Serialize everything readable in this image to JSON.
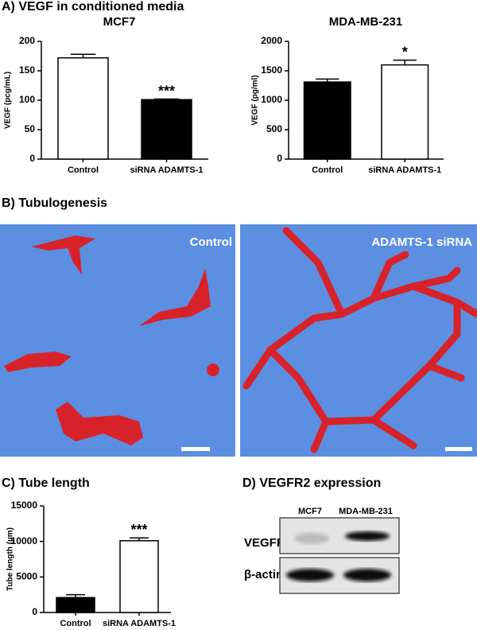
{
  "figure": {
    "panel_a_title": "A) VEGF in conditioned media",
    "panel_b_title": "B) Tubulogenesis",
    "image_labels": [
      "Control",
      "ADAMTS-1 siRNA"
    ],
    "panel_d_title": "D) VEGFR2 expression",
    "blot_lanes": [
      "MCF7",
      "MDA-MB-231"
    ],
    "blot_rows": [
      "VEGFR",
      "β-actin"
    ]
  },
  "chart_data": [
    {
      "type": "bar",
      "title": "MCF7",
      "ylabel": "VEGF (pcg/mL)",
      "categories": [
        "Control",
        "siRNA ADAMTS-1"
      ],
      "values": [
        172,
        101
      ],
      "errors": [
        6,
        1
      ],
      "colors": [
        "#ffffff",
        "#000000"
      ],
      "annotations": [
        null,
        "***"
      ],
      "ylim": [
        0,
        200
      ],
      "yticks": [
        0,
        50,
        100,
        150,
        200
      ]
    },
    {
      "type": "bar",
      "title": "MDA-MB-231",
      "ylabel": "VEGF (pg/ml)",
      "categories": [
        "Control",
        "siRNA ADAMTS-1"
      ],
      "values": [
        1310,
        1600
      ],
      "errors": [
        50,
        80
      ],
      "colors": [
        "#000000",
        "#ffffff"
      ],
      "annotations": [
        null,
        "*"
      ],
      "ylim": [
        0,
        2000
      ],
      "yticks": [
        0,
        500,
        1000,
        1500,
        2000
      ]
    },
    {
      "type": "bar",
      "title": "C) Tube length",
      "ylabel": "Tube length (µm)",
      "categories": [
        "Control",
        "siRNA ADAMTS-1"
      ],
      "values": [
        2100,
        10100
      ],
      "errors": [
        400,
        400
      ],
      "colors": [
        "#000000",
        "#ffffff"
      ],
      "annotations": [
        null,
        "***"
      ],
      "ylim": [
        0,
        15000
      ],
      "yticks": [
        0,
        5000,
        10000,
        15000
      ]
    }
  ]
}
